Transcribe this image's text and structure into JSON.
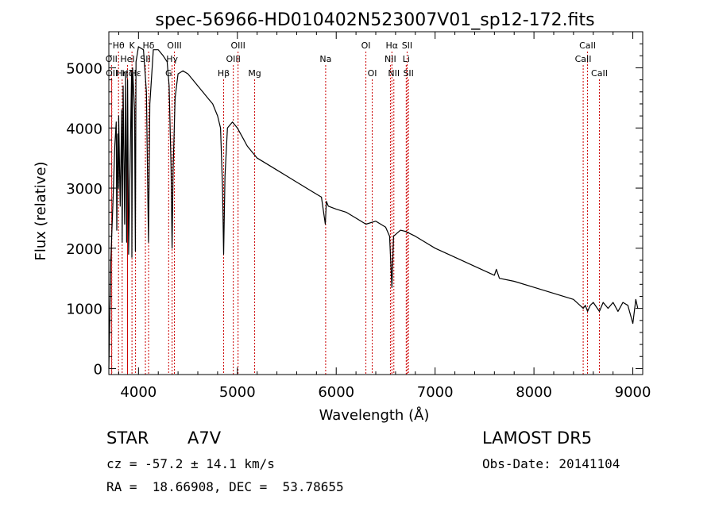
{
  "chart_data": {
    "type": "line",
    "title": "spec-56966-HD010402N523007V01_sp12-172.fits",
    "xlabel": "Wavelength (Å)",
    "ylabel": "Flux (relative)",
    "xlim": [
      3700,
      9100
    ],
    "ylim": [
      -100,
      5600
    ],
    "x_ticks": [
      4000,
      5000,
      6000,
      7000,
      8000,
      9000
    ],
    "y_ticks": [
      0,
      1000,
      2000,
      3000,
      4000,
      5000
    ],
    "line_color": "#000000",
    "marker_color": "#cc0000",
    "series": [
      {
        "x": [
          3700,
          3720,
          3740,
          3760,
          3775,
          3780,
          3790,
          3797,
          3800,
          3815,
          3830,
          3835,
          3845,
          3860,
          3870,
          3880,
          3890,
          3900,
          3930,
          3933,
          3940,
          3960,
          3968,
          3975,
          4000,
          4050,
          4080,
          4101,
          4115,
          4150,
          4200,
          4250,
          4290,
          4310,
          4330,
          4340,
          4350,
          4370,
          4400,
          4450,
          4500,
          4550,
          4600,
          4650,
          4700,
          4750,
          4800,
          4830,
          4850,
          4861,
          4875,
          4900,
          4950,
          5000,
          5050,
          5100,
          5150,
          5200,
          5300,
          5400,
          5500,
          5600,
          5700,
          5800,
          5850,
          5890,
          5900,
          5920,
          6000,
          6100,
          6200,
          6300,
          6400,
          6500,
          6540,
          6563,
          6580,
          6650,
          6700,
          6800,
          6900,
          7000,
          7200,
          7400,
          7600,
          7620,
          7650,
          7800,
          8000,
          8200,
          8400,
          8498,
          8520,
          8542,
          8570,
          8600,
          8662,
          8700,
          8750,
          8800,
          8850,
          8900,
          8950,
          9000,
          9030,
          9050
        ],
        "y": [
          0,
          1800,
          2700,
          3700,
          4100,
          2300,
          3900,
          3000,
          4200,
          2700,
          4300,
          2100,
          4700,
          2400,
          4900,
          2100,
          4800,
          1900,
          4900,
          1850,
          5000,
          4300,
          1950,
          5100,
          5350,
          5300,
          4600,
          2100,
          4400,
          5300,
          5300,
          5200,
          5100,
          4700,
          3300,
          2000,
          3300,
          4500,
          4900,
          4950,
          4900,
          4800,
          4700,
          4600,
          4500,
          4400,
          4200,
          4000,
          3000,
          1900,
          3200,
          4000,
          4100,
          4000,
          3850,
          3700,
          3600,
          3500,
          3400,
          3300,
          3200,
          3100,
          3000,
          2900,
          2850,
          2400,
          2780,
          2700,
          2650,
          2600,
          2500,
          2400,
          2450,
          2350,
          2200,
          1350,
          2200,
          2300,
          2280,
          2200,
          2100,
          2000,
          1850,
          1700,
          1550,
          1650,
          1500,
          1450,
          1350,
          1250,
          1150,
          1000,
          1050,
          950,
          1050,
          1100,
          950,
          1100,
          1000,
          1100,
          950,
          1100,
          1050,
          750,
          1150,
          1000
        ]
      }
    ],
    "lines": [
      {
        "label": "Hθ",
        "x": 3798,
        "row": 1
      },
      {
        "label": "OII",
        "x": 3727,
        "row": 2
      },
      {
        "label": "OII",
        "x": 3730,
        "row": 3
      },
      {
        "label": "Hη",
        "x": 3835,
        "row": 3
      },
      {
        "label": "HeI",
        "x": 3889,
        "row": 2
      },
      {
        "label": "Hζ",
        "x": 3889,
        "row": 3
      },
      {
        "label": "K",
        "x": 3934,
        "row": 1
      },
      {
        "label": "Hε",
        "x": 3970,
        "row": 3
      },
      {
        "label": "SII",
        "x": 4070,
        "row": 2
      },
      {
        "label": "Hδ",
        "x": 4102,
        "row": 1
      },
      {
        "label": "OIII",
        "x": 4363,
        "row": 1
      },
      {
        "label": "Hγ",
        "x": 4340,
        "row": 2
      },
      {
        "label": "G",
        "x": 4305,
        "row": 3
      },
      {
        "label": "Hβ",
        "x": 4861,
        "row": 3
      },
      {
        "label": "OIII",
        "x": 5007,
        "row": 1
      },
      {
        "label": "OIII",
        "x": 4959,
        "row": 2
      },
      {
        "label": "Mg",
        "x": 5175,
        "row": 3
      },
      {
        "label": "Na",
        "x": 5893,
        "row": 2
      },
      {
        "label": "OI",
        "x": 6300,
        "row": 1
      },
      {
        "label": "OI",
        "x": 6364,
        "row": 3
      },
      {
        "label": "Hα",
        "x": 6563,
        "row": 1
      },
      {
        "label": "NII",
        "x": 6548,
        "row": 2
      },
      {
        "label": "NII",
        "x": 6583,
        "row": 3
      },
      {
        "label": "SII",
        "x": 6717,
        "row": 1
      },
      {
        "label": "Li",
        "x": 6708,
        "row": 2
      },
      {
        "label": "SII",
        "x": 6731,
        "row": 3
      },
      {
        "label": "CaII",
        "x": 8542,
        "row": 1
      },
      {
        "label": "CaII",
        "x": 8498,
        "row": 2
      },
      {
        "label": "CaII",
        "x": 8662,
        "row": 3
      }
    ]
  },
  "info": {
    "class_label": "STAR",
    "subclass": "A7V",
    "survey": "LAMOST DR5",
    "cz": "cz = -57.2 ± 14.1 km/s",
    "obs_date": "Obs-Date: 20141104",
    "coords": "RA =  18.66908, DEC =  53.78655"
  }
}
